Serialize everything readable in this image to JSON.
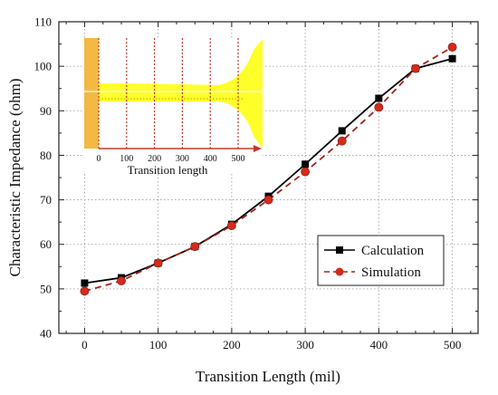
{
  "chart_data": {
    "type": "line",
    "xlabel": "Transition Length (mil)",
    "ylabel": "Characteristic Impedance (ohm)",
    "xlim": [
      -35,
      535
    ],
    "ylim": [
      40,
      110
    ],
    "xticks": [
      0,
      100,
      200,
      300,
      400,
      500
    ],
    "yticks": [
      40,
      50,
      60,
      70,
      80,
      90,
      100,
      110
    ],
    "grid": true,
    "legend_position": "lower-right",
    "series": [
      {
        "name": "Calculation",
        "color": "#000000",
        "marker": "square",
        "line": "solid",
        "x": [
          0,
          50,
          100,
          150,
          200,
          250,
          300,
          350,
          400,
          450,
          500
        ],
        "values": [
          51.3,
          52.5,
          55.8,
          59.5,
          64.5,
          70.8,
          78,
          85.5,
          92.8,
          99.5,
          101.7
        ]
      },
      {
        "name": "Simulation",
        "color": "#d42a1c",
        "marker": "circle",
        "line": "dashed",
        "x": [
          0,
          50,
          100,
          150,
          200,
          250,
          300,
          350,
          400,
          450,
          500
        ],
        "values": [
          49.5,
          51.8,
          55.8,
          59.5,
          64.2,
          70,
          76.3,
          83.2,
          90.8,
          99.5,
          104.3
        ]
      }
    ],
    "inset": {
      "xlabel": "Transition length",
      "xticks": [
        0,
        100,
        200,
        300,
        400,
        500
      ],
      "fill_color": "#ffff2a",
      "block_color": "#f4b942",
      "arrow_color": "#c0392b"
    }
  }
}
